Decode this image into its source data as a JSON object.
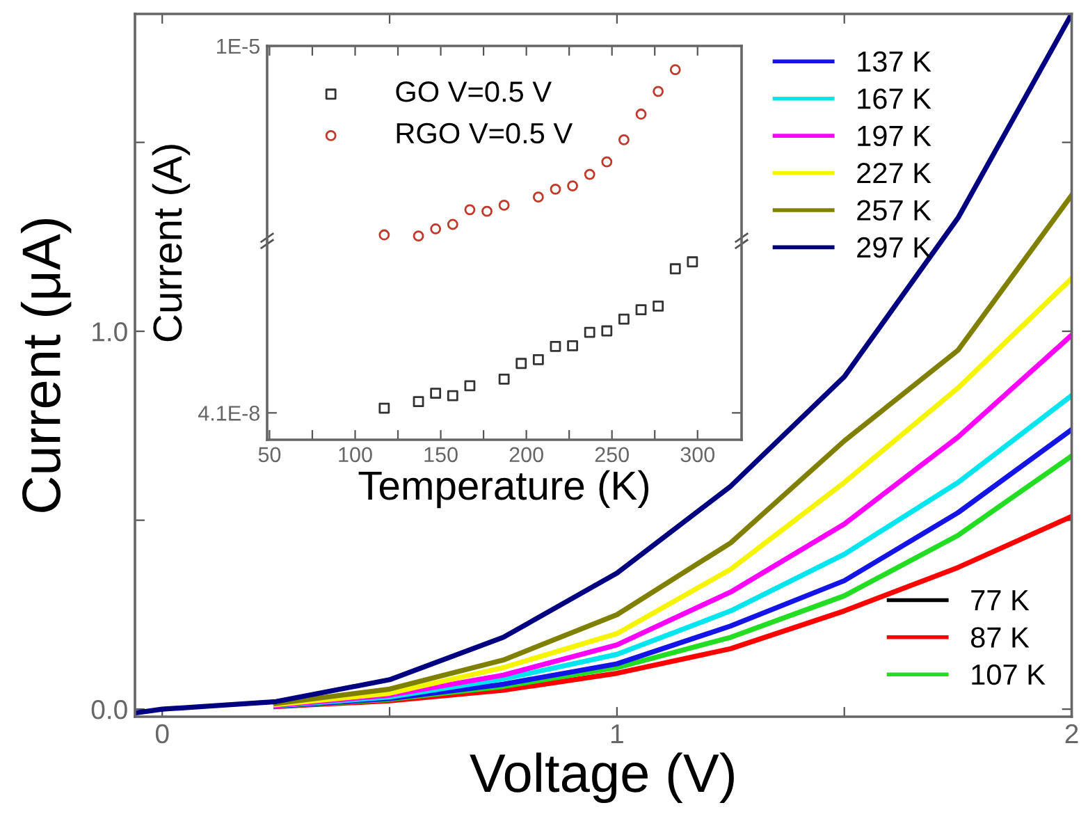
{
  "chart_data": [
    {
      "type": "line",
      "xlabel": "Voltage (V)",
      "ylabel": "Current (μA)",
      "x": [
        -0.06,
        0,
        0.25,
        0.5,
        0.75,
        1,
        1.25,
        1.5,
        1.75,
        2
      ],
      "series": [
        {
          "name": "77 K",
          "color": "#000000",
          "values": [
            null,
            null,
            null,
            null,
            null,
            null,
            null,
            null,
            null,
            null
          ]
        },
        {
          "name": "87 K",
          "color": "#ff0000",
          "values": [
            null,
            null,
            0.007,
            0.022,
            0.05,
            0.095,
            0.16,
            0.26,
            0.375,
            0.51
          ]
        },
        {
          "name": "107 K",
          "color": "#22dd22",
          "values": [
            null,
            null,
            0.008,
            0.026,
            0.06,
            0.11,
            0.19,
            0.3,
            0.46,
            0.67
          ]
        },
        {
          "name": "137 K",
          "color": "#1414e6",
          "values": [
            null,
            null,
            0.008,
            0.028,
            0.066,
            0.12,
            0.22,
            0.34,
            0.52,
            0.74
          ]
        },
        {
          "name": "167 K",
          "color": "#00e5ee",
          "values": [
            null,
            null,
            0.009,
            0.032,
            0.08,
            0.145,
            0.26,
            0.41,
            0.6,
            0.83
          ]
        },
        {
          "name": "197 K",
          "color": "#ff00ff",
          "values": [
            null,
            null,
            0.01,
            0.037,
            0.09,
            0.17,
            0.31,
            0.49,
            0.72,
            0.99
          ]
        },
        {
          "name": "227 K",
          "color": "#f5f500",
          "values": [
            null,
            null,
            0.012,
            0.042,
            0.11,
            0.2,
            0.37,
            0.6,
            0.85,
            1.14
          ]
        },
        {
          "name": "257 K",
          "color": "#808000",
          "values": [
            null,
            null,
            0.015,
            0.053,
            0.13,
            0.25,
            0.44,
            0.71,
            0.95,
            1.36
          ]
        },
        {
          "name": "297 K",
          "color": "#000080",
          "values": [
            -0.01,
            0,
            0.02,
            0.078,
            0.19,
            0.36,
            0.59,
            0.88,
            1.3,
            1.84
          ]
        }
      ],
      "xlim": [
        -0.06,
        2.0
      ],
      "ylim": [
        -0.02,
        1.84
      ],
      "xticks": [
        0,
        {
          "value": 0.5,
          "label": null
        },
        1,
        {
          "value": 1.5,
          "label": null
        },
        2
      ],
      "yticks": [
        {
          "value": 0,
          "label": "0.0"
        },
        {
          "value": 0.5,
          "label": null
        },
        {
          "value": 1,
          "label": "1.0"
        },
        {
          "value": 1.5,
          "label": null
        }
      ],
      "legend": "right",
      "grid": false,
      "line_style": "solid"
    },
    {
      "type": "scatter",
      "xlabel": "Temperature (K)",
      "ylabel": "Current (A)",
      "log": "y",
      "series": [
        {
          "name": "GO V=0.5 V",
          "color": "#333333",
          "marker": "square",
          "x": [
            117,
            137,
            147,
            157,
            167,
            187,
            197,
            207,
            217,
            227,
            237,
            247,
            257,
            267,
            277,
            287,
            297
          ],
          "values": [
            4.4e-08,
            4.85e-08,
            5.5e-08,
            5.3e-08,
            6.15e-08,
            6.8e-08,
            8.6e-08,
            9.1e-08,
            1.11e-07,
            1.12e-07,
            1.37e-07,
            1.4e-07,
            1.67e-07,
            1.92e-07,
            2.03e-07,
            3.55e-07,
            3.94e-07
          ]
        },
        {
          "name": "RGO V=0.5 V",
          "color": "#c0392b",
          "marker": "circle",
          "x": [
            117,
            137,
            147,
            157,
            167,
            177,
            187,
            207,
            217,
            227,
            237,
            247,
            257,
            267,
            277,
            287
          ],
          "values": [
            5.9e-07,
            5.8e-07,
            6.45e-07,
            6.9e-07,
            8.6e-07,
            8.4e-07,
            9.2e-07,
            1.04e-06,
            1.17e-06,
            1.23e-06,
            1.46e-06,
            1.76e-06,
            2.45e-06,
            3.6e-06,
            5.06e-06,
            7e-06
          ]
        }
      ],
      "xlim": [
        48.6,
        325.7
      ],
      "ylim": [
        2.74e-08,
        1e-05
      ],
      "xticks": [
        50,
        {
          "value": 75,
          "label": null
        },
        100,
        {
          "value": 125,
          "label": null
        },
        150,
        {
          "value": 175,
          "label": null
        },
        200,
        {
          "value": 225,
          "label": null
        },
        250,
        {
          "value": 275,
          "label": null
        },
        300
      ],
      "yticks": [
        {
          "value": 4.1e-08,
          "label": "4.1E-8"
        },
        {
          "value": 1e-05,
          "label": "1E-5"
        }
      ],
      "legend": "top left",
      "grid": false
    }
  ]
}
